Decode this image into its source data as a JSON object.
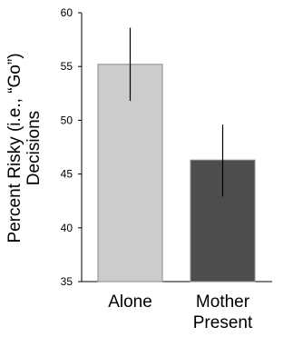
{
  "chart_data": {
    "type": "bar",
    "categories": [
      [
        "Alone"
      ],
      [
        "Mother",
        "Present"
      ]
    ],
    "values": [
      55.2,
      46.3
    ],
    "error_bars": [
      {
        "low": 51.8,
        "high": 58.6
      },
      {
        "low": 42.9,
        "high": 49.6
      }
    ],
    "bar_colors": [
      "#cccccc",
      "#4d4d4d"
    ],
    "ylabel_lines": [
      "Percent Risky (i.e., “Go”)",
      "Decisions"
    ],
    "ylim": [
      35,
      60
    ],
    "yticks": [
      35,
      40,
      45,
      50,
      55,
      60
    ],
    "grid": false
  }
}
